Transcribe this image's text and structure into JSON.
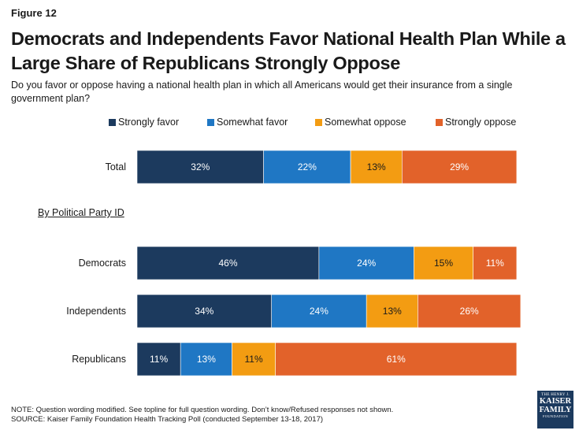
{
  "figure_label": "Figure 12",
  "title": "Democrats and Independents Favor National Health Plan While a Large Share of Republicans Strongly Oppose",
  "subtitle": "Do you favor or oppose having a national health plan in which all Americans would get their insurance from a single government plan?",
  "section_label": "By Political Party ID",
  "note": "NOTE: Question wording modified. See topline for full question wording. Don’t know/Refused responses not shown.",
  "source": "SOURCE: Kaiser Family Foundation Health Tracking Poll (conducted September 13-18, 2017)",
  "logo": {
    "line1": "THE HENRY J.",
    "line2a": "KAISER",
    "line2b": "FAMILY",
    "line3": "FOUNDATION"
  },
  "colors": {
    "strongly_favor": "#1c3a5e",
    "somewhat_favor": "#1f77c4",
    "somewhat_oppose": "#f39c12",
    "strongly_oppose": "#e2622a"
  },
  "chart_data": {
    "type": "bar",
    "orientation": "horizontal",
    "stacked": true,
    "categories": [
      "Total",
      "Democrats",
      "Independents",
      "Republicans"
    ],
    "series": [
      {
        "name": "Strongly favor",
        "color": "#1c3a5e",
        "values": [
          32,
          46,
          34,
          11
        ]
      },
      {
        "name": "Somewhat favor",
        "color": "#1f77c4",
        "values": [
          22,
          24,
          24,
          13
        ]
      },
      {
        "name": "Somewhat oppose",
        "color": "#f39c12",
        "values": [
          13,
          15,
          13,
          11
        ]
      },
      {
        "name": "Strongly oppose",
        "color": "#e2622a",
        "values": [
          29,
          11,
          26,
          61
        ]
      }
    ],
    "value_suffix": "%",
    "legend_position": "top",
    "grid": false
  }
}
